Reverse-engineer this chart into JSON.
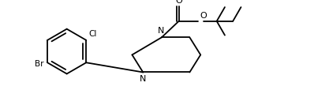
{
  "bg_color": "#ffffff",
  "line_color": "#000000",
  "figsize": [
    3.98,
    1.38
  ],
  "dpi": 100,
  "lw": 1.3,
  "fontsize": 7.5,
  "xlim": [
    0,
    10
  ],
  "ylim": [
    0,
    3.5
  ]
}
